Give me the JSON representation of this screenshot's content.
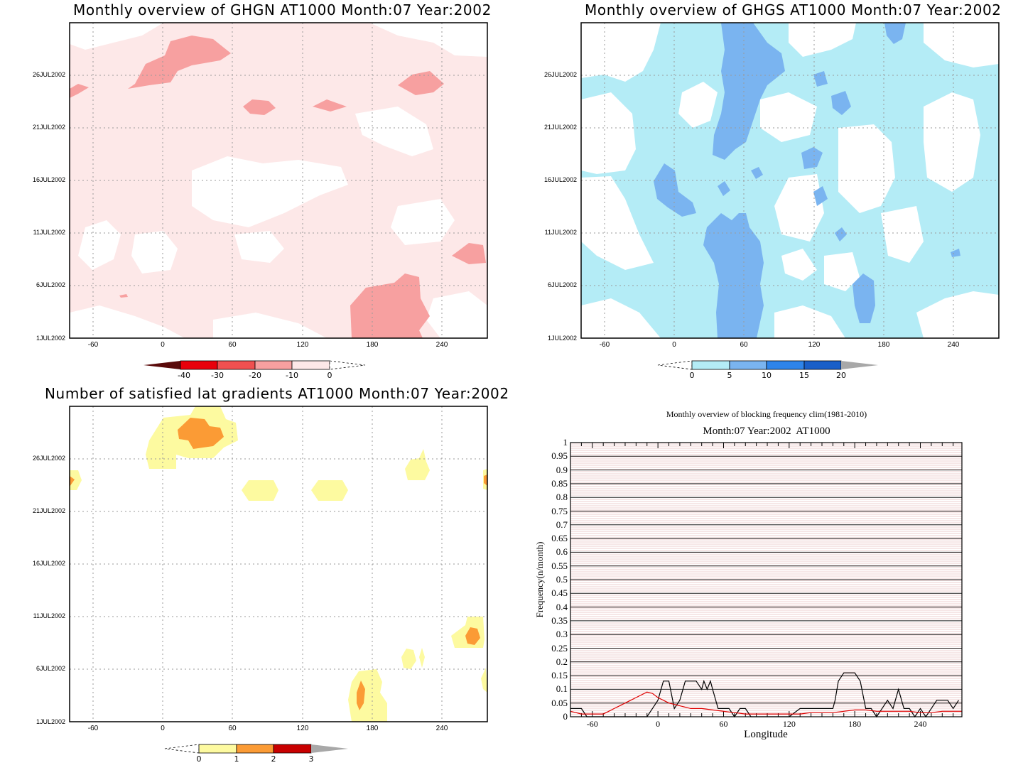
{
  "panels": {
    "ghgn": {
      "title": "Monthly overview of GHGN AT1000 Month:07 Year:2002"
    },
    "ghgs": {
      "title": "Monthly overview of GHGS AT1000 Month:07 Year:2002"
    },
    "grad": {
      "title": "Number of satisfied lat gradients AT1000 Month:07 Year:2002"
    },
    "freq": {
      "title": "Monthly overview of blocking frequency clim(1981-2010)",
      "subtitle": "Month:07 Year:2002  AT1000",
      "xlabel": "Longitude",
      "ylabel": "Frequency(n/month)"
    }
  },
  "axes": {
    "hov_y_ticks": [
      "26JUL2002",
      "21JUL2002",
      "16JUL2002",
      "11JUL2002",
      "6JUL2002",
      "1JUL2002"
    ],
    "hov_x_ticks": [
      "-60",
      "0",
      "60",
      "120",
      "180",
      "240"
    ],
    "freq_y_ticks": [
      "1",
      "0.95",
      "0.9",
      "0.85",
      "0.8",
      "0.75",
      "0.7",
      "0.65",
      "0.6",
      "0.55",
      "0.5",
      "0.45",
      "0.4",
      "0.35",
      "0.3",
      "0.25",
      "0.2",
      "0.15",
      "0.1",
      "0.05",
      "0"
    ],
    "freq_x_ticks": [
      "-60",
      "0",
      "60",
      "120",
      "180",
      "240"
    ]
  },
  "colorbars": {
    "ghgn": {
      "labels": [
        "-40",
        "-30",
        "-20",
        "-10",
        "0"
      ],
      "colors": [
        "#5a0a0a",
        "#e8000b",
        "#f05050",
        "#f7a0a0",
        "#fde8e8"
      ]
    },
    "ghgs": {
      "labels": [
        "0",
        "5",
        "10",
        "15",
        "20"
      ],
      "colors": [
        "#b4ecf6",
        "#7ab4f0",
        "#2e84ea",
        "#1a5fc8",
        "#a8a8a8"
      ]
    },
    "grad": {
      "labels": [
        "0",
        "1",
        "2",
        "3"
      ],
      "colors": [
        "#fdfaa0",
        "#fb9b35",
        "#c80000",
        "#a8a8a8"
      ]
    }
  },
  "chart_data": [
    {
      "type": "heatmap",
      "title": "Monthly overview of GHGN AT1000 Month:07 Year:2002",
      "x_ticks": [
        -60,
        0,
        60,
        120,
        180,
        240
      ],
      "y_ticks": [
        "1JUL2002",
        "6JUL2002",
        "11JUL2002",
        "16JUL2002",
        "21JUL2002",
        "26JUL2002"
      ],
      "colorbar_levels": [
        -40,
        -30,
        -20,
        -10,
        0
      ],
      "grid": true
    },
    {
      "type": "heatmap",
      "title": "Monthly overview of GHGS AT1000 Month:07 Year:2002",
      "x_ticks": [
        -60,
        0,
        60,
        120,
        180,
        240
      ],
      "y_ticks": [
        "1JUL2002",
        "6JUL2002",
        "11JUL2002",
        "16JUL2002",
        "21JUL2002",
        "26JUL2002"
      ],
      "colorbar_levels": [
        0,
        5,
        10,
        15,
        20
      ],
      "grid": true
    },
    {
      "type": "heatmap",
      "title": "Number of satisfied lat gradients AT1000 Month:07 Year:2002",
      "x_ticks": [
        -60,
        0,
        60,
        120,
        180,
        240
      ],
      "y_ticks": [
        "1JUL2002",
        "6JUL2002",
        "11JUL2002",
        "16JUL2002",
        "21JUL2002",
        "26JUL2002"
      ],
      "colorbar_levels": [
        0,
        1,
        2,
        3
      ],
      "grid": true
    },
    {
      "type": "line",
      "title": "Monthly overview of blocking frequency clim(1981-2010)",
      "subtitle": "Month:07 Year:2002  AT1000",
      "xlabel": "Longitude",
      "ylabel": "Frequency(n/month)",
      "xlim": [
        -80,
        278
      ],
      "ylim": [
        0,
        1
      ],
      "series": [
        {
          "name": "",
          "color": "#000000",
          "x": [
            -80,
            -70,
            -65,
            -60,
            -10,
            -5,
            0,
            5,
            10,
            15,
            20,
            25,
            30,
            35,
            40,
            42,
            45,
            48,
            50,
            55,
            60,
            65,
            70,
            75,
            80,
            85,
            100,
            105,
            110,
            120,
            130,
            135,
            140,
            150,
            155,
            160,
            162,
            165,
            170,
            175,
            180,
            185,
            190,
            195,
            200,
            205,
            210,
            215,
            220,
            225,
            230,
            235,
            240,
            245,
            250,
            255,
            260,
            265,
            270,
            275
          ],
          "y": [
            0.03,
            0.03,
            0.0,
            0.0,
            0.0,
            0.03,
            0.06,
            0.13,
            0.13,
            0.03,
            0.06,
            0.13,
            0.13,
            0.13,
            0.1,
            0.13,
            0.1,
            0.13,
            0.1,
            0.03,
            0.03,
            0.03,
            0.0,
            0.03,
            0.03,
            0.0,
            0.0,
            0.0,
            0.0,
            0.0,
            0.03,
            0.03,
            0.03,
            0.03,
            0.03,
            0.03,
            0.06,
            0.13,
            0.16,
            0.16,
            0.16,
            0.13,
            0.03,
            0.03,
            0.0,
            0.03,
            0.06,
            0.03,
            0.1,
            0.03,
            0.03,
            0.0,
            0.03,
            0.0,
            0.03,
            0.06,
            0.06,
            0.06,
            0.03,
            0.06
          ]
        },
        {
          "name": "",
          "color": "#e00000",
          "x": [
            -80,
            -70,
            -60,
            -50,
            -45,
            -40,
            -35,
            -30,
            -25,
            -20,
            -15,
            -10,
            -5,
            0,
            5,
            10,
            20,
            30,
            40,
            50,
            60,
            70,
            80,
            90,
            100,
            110,
            120,
            130,
            140,
            150,
            160,
            170,
            180,
            190,
            200,
            210,
            220,
            230,
            240,
            250,
            260,
            270,
            278
          ],
          "y": [
            0.02,
            0.01,
            0.01,
            0.01,
            0.02,
            0.03,
            0.04,
            0.05,
            0.06,
            0.07,
            0.08,
            0.09,
            0.085,
            0.07,
            0.06,
            0.05,
            0.04,
            0.03,
            0.03,
            0.025,
            0.02,
            0.015,
            0.01,
            0.01,
            0.01,
            0.01,
            0.01,
            0.01,
            0.015,
            0.015,
            0.015,
            0.02,
            0.025,
            0.025,
            0.02,
            0.02,
            0.02,
            0.02,
            0.015,
            0.015,
            0.02,
            0.02,
            0.02
          ]
        }
      ],
      "grid": true
    }
  ]
}
